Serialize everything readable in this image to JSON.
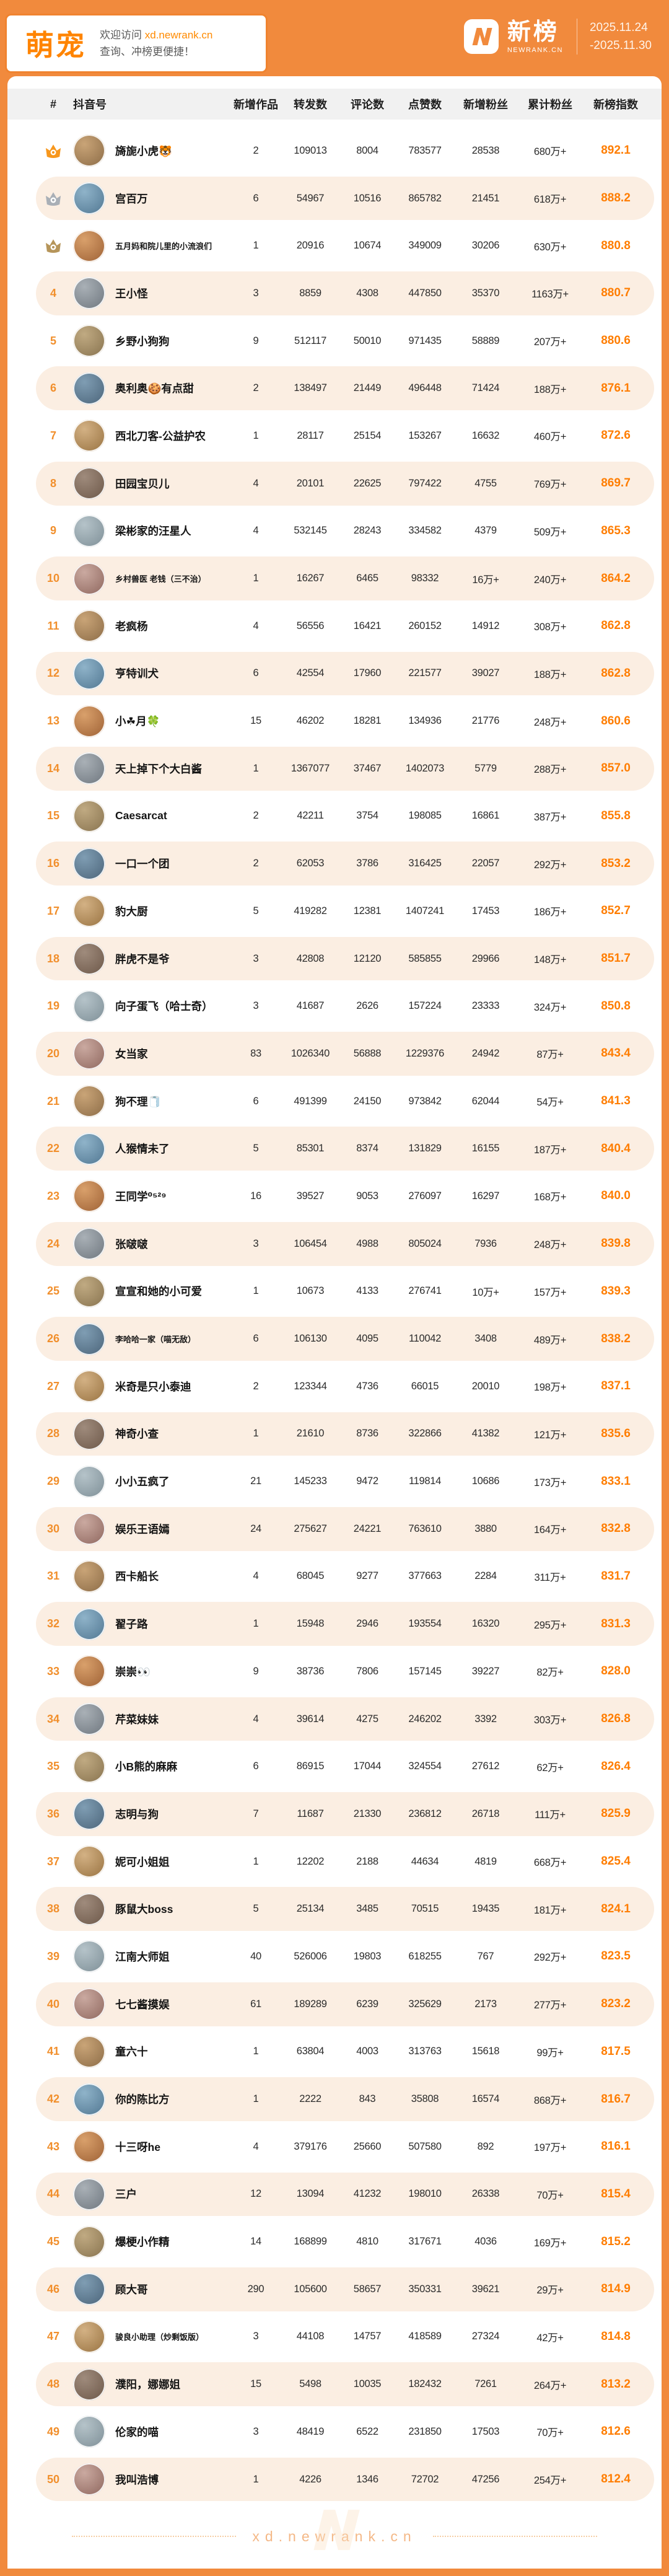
{
  "banner": {
    "category": "萌宠",
    "welcome_prefix": "欢迎访问 ",
    "welcome_link": "xd.newrank.cn",
    "welcome_line2": "查询、冲榜更便捷！",
    "brand_cn": "新榜",
    "brand_domain": "NEWRANK.CN",
    "date_line1": "2025.11.24",
    "date_line2": "-2025.11.30"
  },
  "colors": {
    "accent_orange": "#F18A3D",
    "index_orange": "#FF7D00",
    "rank_orange": "#F18F2C",
    "row_alt_bg": "#FBEEE2",
    "gold": "#F7971D",
    "silver": "#A9AFB6",
    "bronze": "#B6955A"
  },
  "table": {
    "headers": [
      "#",
      "抖音号",
      "新增作品",
      "转发数",
      "评论数",
      "点赞数",
      "新增粉丝",
      "累计粉丝",
      "新榜指数"
    ],
    "rows": [
      {
        "rank": 1,
        "medal": "gold",
        "name": "旖旎小虎🐯",
        "works": "2",
        "shares": "109013",
        "comments": "8004",
        "likes": "783577",
        "new_fans": "28538",
        "total_fans": "680万+",
        "index": "892.1"
      },
      {
        "rank": 2,
        "medal": "silver",
        "name": "宫百万",
        "works": "6",
        "shares": "54967",
        "comments": "10516",
        "likes": "865782",
        "new_fans": "21451",
        "total_fans": "618万+",
        "index": "888.2"
      },
      {
        "rank": 3,
        "medal": "bronze",
        "name": "五月妈和院儿里的小流浪们",
        "works": "1",
        "shares": "20916",
        "comments": "10674",
        "likes": "349009",
        "new_fans": "30206",
        "total_fans": "630万+",
        "index": "880.8"
      },
      {
        "rank": 4,
        "medal": null,
        "name": "王小怪",
        "works": "3",
        "shares": "8859",
        "comments": "4308",
        "likes": "447850",
        "new_fans": "35370",
        "total_fans": "1163万+",
        "index": "880.7"
      },
      {
        "rank": 5,
        "medal": null,
        "name": "乡野小狗狗",
        "works": "9",
        "shares": "512117",
        "comments": "50010",
        "likes": "971435",
        "new_fans": "58889",
        "total_fans": "207万+",
        "index": "880.6"
      },
      {
        "rank": 6,
        "medal": null,
        "name": "奥利奥🍪有点甜",
        "works": "2",
        "shares": "138497",
        "comments": "21449",
        "likes": "496448",
        "new_fans": "71424",
        "total_fans": "188万+",
        "index": "876.1"
      },
      {
        "rank": 7,
        "medal": null,
        "name": "西北刀客-公益护农",
        "works": "1",
        "shares": "28117",
        "comments": "25154",
        "likes": "153267",
        "new_fans": "16632",
        "total_fans": "460万+",
        "index": "872.6"
      },
      {
        "rank": 8,
        "medal": null,
        "name": "田园宝贝儿",
        "works": "4",
        "shares": "20101",
        "comments": "22625",
        "likes": "797422",
        "new_fans": "4755",
        "total_fans": "769万+",
        "index": "869.7"
      },
      {
        "rank": 9,
        "medal": null,
        "name": "梁彬家的汪星人",
        "works": "4",
        "shares": "532145",
        "comments": "28243",
        "likes": "334582",
        "new_fans": "4379",
        "total_fans": "509万+",
        "index": "865.3"
      },
      {
        "rank": 10,
        "medal": null,
        "name": "乡村兽医 老钱（三不治）",
        "works": "1",
        "shares": "16267",
        "comments": "6465",
        "likes": "98332",
        "new_fans": "16万+",
        "total_fans": "240万+",
        "index": "864.2"
      },
      {
        "rank": 11,
        "medal": null,
        "name": "老疯杨",
        "works": "4",
        "shares": "56556",
        "comments": "16421",
        "likes": "260152",
        "new_fans": "14912",
        "total_fans": "308万+",
        "index": "862.8"
      },
      {
        "rank": 12,
        "medal": null,
        "name": "亨特训犬",
        "works": "6",
        "shares": "42554",
        "comments": "17960",
        "likes": "221577",
        "new_fans": "39027",
        "total_fans": "188万+",
        "index": "862.8"
      },
      {
        "rank": 13,
        "medal": null,
        "name": "小☘月🍀",
        "works": "15",
        "shares": "46202",
        "comments": "18281",
        "likes": "134936",
        "new_fans": "21776",
        "total_fans": "248万+",
        "index": "860.6"
      },
      {
        "rank": 14,
        "medal": null,
        "name": "天上掉下个大白酱",
        "works": "1",
        "shares": "1367077",
        "comments": "37467",
        "likes": "1402073",
        "new_fans": "5779",
        "total_fans": "288万+",
        "index": "857.0"
      },
      {
        "rank": 15,
        "medal": null,
        "name": "Caesarcat",
        "works": "2",
        "shares": "42211",
        "comments": "3754",
        "likes": "198085",
        "new_fans": "16861",
        "total_fans": "387万+",
        "index": "855.8"
      },
      {
        "rank": 16,
        "medal": null,
        "name": "一口一个团",
        "works": "2",
        "shares": "62053",
        "comments": "3786",
        "likes": "316425",
        "new_fans": "22057",
        "total_fans": "292万+",
        "index": "853.2"
      },
      {
        "rank": 17,
        "medal": null,
        "name": "豹大厨",
        "works": "5",
        "shares": "419282",
        "comments": "12381",
        "likes": "1407241",
        "new_fans": "17453",
        "total_fans": "186万+",
        "index": "852.7"
      },
      {
        "rank": 18,
        "medal": null,
        "name": "胖虎不是爷",
        "works": "3",
        "shares": "42808",
        "comments": "12120",
        "likes": "585855",
        "new_fans": "29966",
        "total_fans": "148万+",
        "index": "851.7"
      },
      {
        "rank": 19,
        "medal": null,
        "name": "向子蛋飞（哈士奇）",
        "works": "3",
        "shares": "41687",
        "comments": "2626",
        "likes": "157224",
        "new_fans": "23333",
        "total_fans": "324万+",
        "index": "850.8"
      },
      {
        "rank": 20,
        "medal": null,
        "name": "女当家",
        "works": "83",
        "shares": "1026340",
        "comments": "56888",
        "likes": "1229376",
        "new_fans": "24942",
        "total_fans": "87万+",
        "index": "843.4"
      },
      {
        "rank": 21,
        "medal": null,
        "name": "狗不理🧻",
        "works": "6",
        "shares": "491399",
        "comments": "24150",
        "likes": "973842",
        "new_fans": "62044",
        "total_fans": "54万+",
        "index": "841.3"
      },
      {
        "rank": 22,
        "medal": null,
        "name": "人猴情未了",
        "works": "5",
        "shares": "85301",
        "comments": "8374",
        "likes": "131829",
        "new_fans": "16155",
        "total_fans": "187万+",
        "index": "840.4"
      },
      {
        "rank": 23,
        "medal": null,
        "name": "王同学⁰⁵²⁹",
        "works": "16",
        "shares": "39527",
        "comments": "9053",
        "likes": "276097",
        "new_fans": "16297",
        "total_fans": "168万+",
        "index": "840.0"
      },
      {
        "rank": 24,
        "medal": null,
        "name": "张啵啵",
        "works": "3",
        "shares": "106454",
        "comments": "4988",
        "likes": "805024",
        "new_fans": "7936",
        "total_fans": "248万+",
        "index": "839.8"
      },
      {
        "rank": 25,
        "medal": null,
        "name": "宣宣和她的小可爱",
        "works": "1",
        "shares": "10673",
        "comments": "4133",
        "likes": "276741",
        "new_fans": "10万+",
        "total_fans": "157万+",
        "index": "839.3"
      },
      {
        "rank": 26,
        "medal": null,
        "name": "李哈哈一家（喵无敌）",
        "works": "6",
        "shares": "106130",
        "comments": "4095",
        "likes": "110042",
        "new_fans": "3408",
        "total_fans": "489万+",
        "index": "838.2"
      },
      {
        "rank": 27,
        "medal": null,
        "name": "米奇是只小泰迪",
        "works": "2",
        "shares": "123344",
        "comments": "4736",
        "likes": "66015",
        "new_fans": "20010",
        "total_fans": "198万+",
        "index": "837.1"
      },
      {
        "rank": 28,
        "medal": null,
        "name": "神奇小查",
        "works": "1",
        "shares": "21610",
        "comments": "8736",
        "likes": "322866",
        "new_fans": "41382",
        "total_fans": "121万+",
        "index": "835.6"
      },
      {
        "rank": 29,
        "medal": null,
        "name": "小小五疯了",
        "works": "21",
        "shares": "145233",
        "comments": "9472",
        "likes": "119814",
        "new_fans": "10686",
        "total_fans": "173万+",
        "index": "833.1"
      },
      {
        "rank": 30,
        "medal": null,
        "name": "娱乐王语嫣",
        "works": "24",
        "shares": "275627",
        "comments": "24221",
        "likes": "763610",
        "new_fans": "3880",
        "total_fans": "164万+",
        "index": "832.8"
      },
      {
        "rank": 31,
        "medal": null,
        "name": "西卡船长",
        "works": "4",
        "shares": "68045",
        "comments": "9277",
        "likes": "377663",
        "new_fans": "2284",
        "total_fans": "311万+",
        "index": "831.7"
      },
      {
        "rank": 32,
        "medal": null,
        "name": "翟子路",
        "works": "1",
        "shares": "15948",
        "comments": "2946",
        "likes": "193554",
        "new_fans": "16320",
        "total_fans": "295万+",
        "index": "831.3"
      },
      {
        "rank": 33,
        "medal": null,
        "name": "崇崇👀",
        "works": "9",
        "shares": "38736",
        "comments": "7806",
        "likes": "157145",
        "new_fans": "39227",
        "total_fans": "82万+",
        "index": "828.0"
      },
      {
        "rank": 34,
        "medal": null,
        "name": "芹菜妹妹",
        "works": "4",
        "shares": "39614",
        "comments": "4275",
        "likes": "246202",
        "new_fans": "3392",
        "total_fans": "303万+",
        "index": "826.8"
      },
      {
        "rank": 35,
        "medal": null,
        "name": "小B熊的麻麻",
        "works": "6",
        "shares": "86915",
        "comments": "17044",
        "likes": "324554",
        "new_fans": "27612",
        "total_fans": "62万+",
        "index": "826.4"
      },
      {
        "rank": 36,
        "medal": null,
        "name": "志明与狗",
        "works": "7",
        "shares": "11687",
        "comments": "21330",
        "likes": "236812",
        "new_fans": "26718",
        "total_fans": "111万+",
        "index": "825.9"
      },
      {
        "rank": 37,
        "medal": null,
        "name": "妮可小姐姐",
        "works": "1",
        "shares": "12202",
        "comments": "2188",
        "likes": "44634",
        "new_fans": "4819",
        "total_fans": "668万+",
        "index": "825.4"
      },
      {
        "rank": 38,
        "medal": null,
        "name": "豚鼠大boss",
        "works": "5",
        "shares": "25134",
        "comments": "3485",
        "likes": "70515",
        "new_fans": "19435",
        "total_fans": "181万+",
        "index": "824.1"
      },
      {
        "rank": 39,
        "medal": null,
        "name": "江南大师姐",
        "works": "40",
        "shares": "526006",
        "comments": "19803",
        "likes": "618255",
        "new_fans": "767",
        "total_fans": "292万+",
        "index": "823.5"
      },
      {
        "rank": 40,
        "medal": null,
        "name": "七七酱摸娱",
        "works": "61",
        "shares": "189289",
        "comments": "6239",
        "likes": "325629",
        "new_fans": "2173",
        "total_fans": "277万+",
        "index": "823.2"
      },
      {
        "rank": 41,
        "medal": null,
        "name": "童六十",
        "works": "1",
        "shares": "63804",
        "comments": "4003",
        "likes": "313763",
        "new_fans": "15618",
        "total_fans": "99万+",
        "index": "817.5"
      },
      {
        "rank": 42,
        "medal": null,
        "name": "你的陈比方",
        "works": "1",
        "shares": "2222",
        "comments": "843",
        "likes": "35808",
        "new_fans": "16574",
        "total_fans": "868万+",
        "index": "816.7"
      },
      {
        "rank": 43,
        "medal": null,
        "name": "十三呀he",
        "works": "4",
        "shares": "379176",
        "comments": "25660",
        "likes": "507580",
        "new_fans": "892",
        "total_fans": "197万+",
        "index": "816.1"
      },
      {
        "rank": 44,
        "medal": null,
        "name": "三户",
        "works": "12",
        "shares": "13094",
        "comments": "41232",
        "likes": "198010",
        "new_fans": "26338",
        "total_fans": "70万+",
        "index": "815.4"
      },
      {
        "rank": 45,
        "medal": null,
        "name": "爆梗小作精",
        "works": "14",
        "shares": "168899",
        "comments": "4810",
        "likes": "317671",
        "new_fans": "4036",
        "total_fans": "169万+",
        "index": "815.2"
      },
      {
        "rank": 46,
        "medal": null,
        "name": "顾大哥",
        "works": "290",
        "shares": "105600",
        "comments": "58657",
        "likes": "350331",
        "new_fans": "39621",
        "total_fans": "29万+",
        "index": "814.9"
      },
      {
        "rank": 47,
        "medal": null,
        "name": "骏良小助理（炒剩饭版）",
        "works": "3",
        "shares": "44108",
        "comments": "14757",
        "likes": "418589",
        "new_fans": "27324",
        "total_fans": "42万+",
        "index": "814.8"
      },
      {
        "rank": 48,
        "medal": null,
        "name": "濮阳，娜娜姐",
        "works": "15",
        "shares": "5498",
        "comments": "10035",
        "likes": "182432",
        "new_fans": "7261",
        "total_fans": "264万+",
        "index": "813.2"
      },
      {
        "rank": 49,
        "medal": null,
        "name": "伦家的喵",
        "works": "3",
        "shares": "48419",
        "comments": "6522",
        "likes": "231850",
        "new_fans": "17503",
        "total_fans": "70万+",
        "index": "812.6"
      },
      {
        "rank": 50,
        "medal": null,
        "name": "我叫浩博",
        "works": "1",
        "shares": "4226",
        "comments": "1346",
        "likes": "72702",
        "new_fans": "47256",
        "total_fans": "254万+",
        "index": "812.4"
      }
    ]
  },
  "footer": {
    "watermark": "xd.newrank.cn"
  }
}
